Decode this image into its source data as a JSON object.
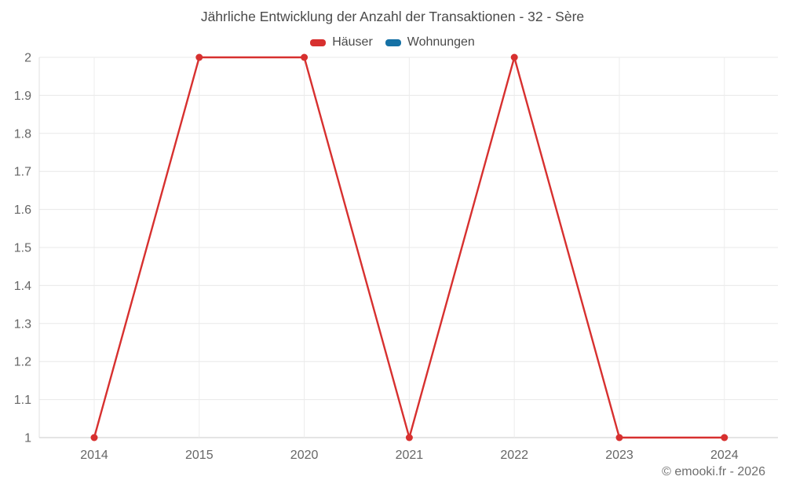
{
  "title": "Jährliche Entwicklung der Anzahl der Transaktionen - 32 - Sère",
  "footer": "© emooki.fr - 2026",
  "legend": [
    {
      "label": "Häuser",
      "color": "#d7302f"
    },
    {
      "label": "Wohnungen",
      "color": "#1571a5"
    }
  ],
  "chart_data": {
    "type": "line",
    "title": "Jährliche Entwicklung der Anzahl der Transaktionen - 32 - Sère",
    "categories": [
      "2014",
      "2015",
      "2020",
      "2021",
      "2022",
      "2023",
      "2024"
    ],
    "series": [
      {
        "name": "Häuser",
        "color": "#d7302f",
        "values": [
          1,
          2,
          2,
          1,
          2,
          1,
          1
        ]
      },
      {
        "name": "Wohnungen",
        "color": "#1571a5",
        "values": []
      }
    ],
    "xlabel": "",
    "ylabel": "",
    "ylim": [
      1,
      2
    ],
    "ytick_step": 0.1,
    "ytick_labels": [
      "1",
      "1.1",
      "1.2",
      "1.3",
      "1.4",
      "1.5",
      "1.6",
      "1.7",
      "1.8",
      "1.9",
      "2"
    ],
    "grid": true,
    "legend_position": "top",
    "marker": "circle"
  }
}
